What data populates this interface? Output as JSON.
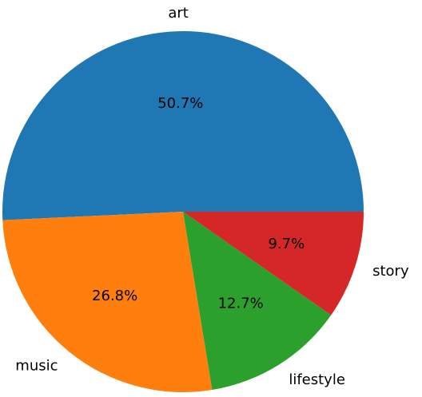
{
  "chart_data": {
    "type": "pie",
    "title": "",
    "labels": [
      "art",
      "music",
      "lifestyle",
      "story"
    ],
    "percent_labels": [
      "50.7%",
      "26.8%",
      "12.7%",
      "9.7%"
    ],
    "values": [
      50.7,
      26.8,
      12.7,
      9.7
    ],
    "colors": [
      "#1f77b4",
      "#ff7f0e",
      "#2ca02c",
      "#d62728"
    ],
    "start_angle_deg": 0,
    "direction": "counterclockwise",
    "legend": "none"
  }
}
